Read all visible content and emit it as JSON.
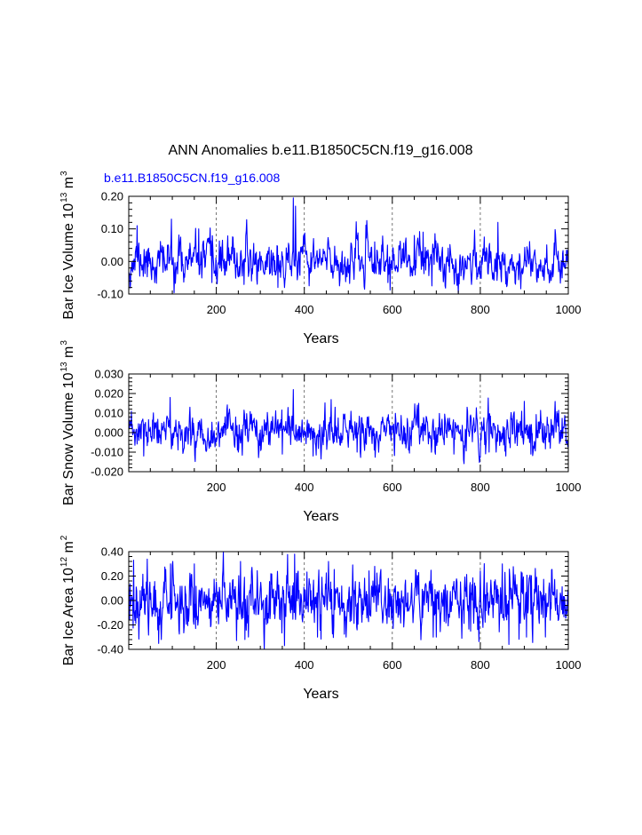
{
  "figure": {
    "title": "ANN Anomalies b.e11.B1850C5CN.f19_g16.008",
    "case_label": "b.e11.B1850C5CN.f19_g16.008"
  },
  "colors": {
    "series": "#0000ff",
    "case_label": "#0000ff",
    "axis": "#000000",
    "grid": "#555555"
  },
  "chart_data": [
    {
      "type": "line",
      "title": "",
      "xlabel": "Years",
      "ylabel": "Bar Ice Volume 10",
      "ylabel_exp": "13",
      "ylabel_unit": " m",
      "ylabel_unit_exp": "3",
      "xlim": [
        1,
        1000
      ],
      "ylim": [
        -0.1,
        0.2
      ],
      "x_ticks": [
        200,
        400,
        600,
        800,
        1000
      ],
      "x_tick_labels": [
        "200",
        "400",
        "600",
        "800",
        "1000"
      ],
      "y_ticks": [
        -0.1,
        0.0,
        0.1,
        0.2
      ],
      "y_tick_labels": [
        "-0.10",
        "0.00",
        "0.10",
        "0.20"
      ],
      "grid_x": [
        200,
        400,
        600,
        800
      ],
      "series": [
        {
          "name": "b.e11.B1850C5CN.f19_g16.008",
          "n": 1000,
          "sigma": 0.033,
          "phi": 0.55,
          "seed": 11,
          "peaks": [
            [
              20,
              0.11
            ],
            [
              98,
              0.13
            ],
            [
              160,
              0.1
            ],
            [
              375,
              0.195
            ],
            [
              380,
              0.17
            ],
            [
              520,
              0.08
            ],
            [
              560,
              0.06
            ],
            [
              650,
              0.08
            ],
            [
              670,
              0.09
            ],
            [
              840,
              0.12
            ]
          ],
          "troughs": [
            [
              60,
              -0.065
            ],
            [
              190,
              -0.065
            ],
            [
              340,
              -0.08
            ],
            [
              355,
              -0.08
            ],
            [
              480,
              -0.075
            ],
            [
              590,
              -0.065
            ],
            [
              690,
              -0.075
            ],
            [
              720,
              -0.075
            ],
            [
              880,
              -0.07
            ]
          ]
        }
      ]
    },
    {
      "type": "line",
      "title": "",
      "xlabel": "Years",
      "ylabel": "Bar Snow Volume 10",
      "ylabel_exp": "13",
      "ylabel_unit": " m",
      "ylabel_unit_exp": "3",
      "xlim": [
        1,
        1000
      ],
      "ylim": [
        -0.02,
        0.03
      ],
      "x_ticks": [
        200,
        400,
        600,
        800,
        1000
      ],
      "x_tick_labels": [
        "200",
        "400",
        "600",
        "800",
        "1000"
      ],
      "y_ticks": [
        -0.02,
        -0.01,
        0.0,
        0.01,
        0.02,
        0.03
      ],
      "y_tick_labels": [
        "-0.020",
        "-0.010",
        "0.000",
        "0.010",
        "0.020",
        "0.030"
      ],
      "grid_x": [
        200,
        400,
        600,
        800
      ],
      "series": [
        {
          "name": "b.e11.B1850C5CN.f19_g16.008",
          "n": 1000,
          "sigma": 0.0048,
          "phi": 0.45,
          "seed": 23,
          "peaks": [
            [
              95,
              0.018
            ],
            [
              140,
              0.013
            ],
            [
              230,
              0.012
            ],
            [
              375,
              0.022
            ],
            [
              470,
              0.013
            ],
            [
              660,
              0.015
            ],
            [
              770,
              0.013
            ],
            [
              900,
              0.016
            ]
          ],
          "troughs": [
            [
              35,
              -0.012
            ],
            [
              250,
              -0.01
            ],
            [
              350,
              -0.011
            ],
            [
              420,
              -0.012
            ],
            [
              520,
              -0.01
            ],
            [
              740,
              -0.011
            ],
            [
              820,
              -0.01
            ],
            [
              915,
              -0.011
            ]
          ]
        }
      ]
    },
    {
      "type": "line",
      "title": "",
      "xlabel": "Years",
      "ylabel": "Bar Ice Area 10",
      "ylabel_exp": "12",
      "ylabel_unit": " m",
      "ylabel_unit_exp": "2",
      "xlim": [
        1,
        1000
      ],
      "ylim": [
        -0.4,
        0.4
      ],
      "x_ticks": [
        200,
        400,
        600,
        800,
        1000
      ],
      "x_tick_labels": [
        "200",
        "400",
        "600",
        "800",
        "1000"
      ],
      "y_ticks": [
        -0.4,
        -0.2,
        0.0,
        0.2,
        0.4
      ],
      "y_tick_labels": [
        "-0.40",
        "-0.20",
        "0.00",
        "0.20",
        "0.40"
      ],
      "grid_x": [
        200,
        400,
        600,
        800
      ],
      "series": [
        {
          "name": "b.e11.B1850C5CN.f19_g16.008",
          "n": 1000,
          "sigma": 0.12,
          "phi": 0.4,
          "seed": 37,
          "peaks": [
            [
              12,
              0.33
            ],
            [
              96,
              0.3
            ],
            [
              150,
              0.3
            ],
            [
              255,
              0.32
            ],
            [
              378,
              0.38
            ],
            [
              455,
              0.32
            ],
            [
              560,
              0.28
            ],
            [
              850,
              0.3
            ]
          ],
          "troughs": [
            [
              75,
              -0.32
            ],
            [
              265,
              -0.32
            ],
            [
              355,
              -0.37
            ],
            [
              430,
              -0.3
            ],
            [
              495,
              -0.3
            ],
            [
              700,
              -0.3
            ],
            [
              865,
              -0.36
            ],
            [
              905,
              -0.3
            ]
          ]
        }
      ]
    }
  ]
}
